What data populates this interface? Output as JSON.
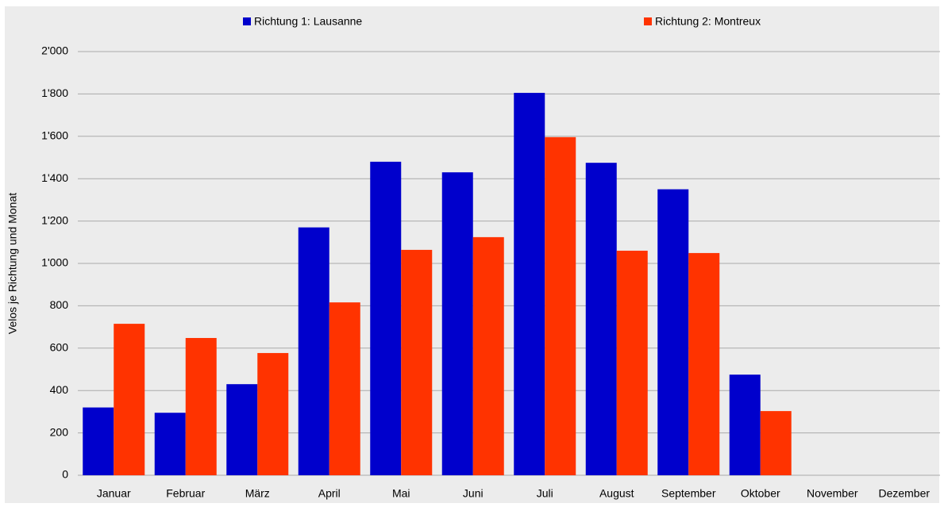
{
  "chart_data": {
    "type": "bar",
    "ylabel": "Velos je Richtung und Monat",
    "categories": [
      "Januar",
      "Februar",
      "März",
      "April",
      "Mai",
      "Juni",
      "Juli",
      "August",
      "September",
      "Oktober",
      "November",
      "Dezember"
    ],
    "series": [
      {
        "name": "Richtung 1: Lausanne",
        "color": "#0000cc",
        "values": [
          320,
          295,
          430,
          1170,
          1480,
          1430,
          1805,
          1475,
          1350,
          475,
          null,
          null
        ]
      },
      {
        "name": "Richtung 2: Montreux",
        "color": "#ff3300",
        "values": [
          715,
          648,
          577,
          816,
          1064,
          1124,
          1596,
          1060,
          1049,
          303,
          null,
          null
        ]
      }
    ],
    "ylim": [
      0,
      2000
    ],
    "yticks": [
      0,
      200,
      400,
      600,
      800,
      {
        "value": 1000,
        "label": "1'000"
      },
      {
        "value": 1200,
        "label": "1'200"
      },
      {
        "value": 1400,
        "label": "1'400"
      },
      {
        "value": 1600,
        "label": "1'600"
      },
      {
        "value": 1800,
        "label": "1'800"
      },
      {
        "value": 2000,
        "label": "2'000"
      }
    ],
    "grid": true,
    "legend": "top"
  }
}
